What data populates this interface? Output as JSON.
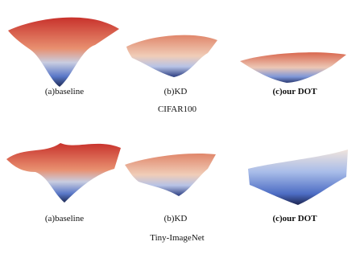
{
  "rows": [
    {
      "label": "CIFAR100",
      "panels": [
        "(a)baseline",
        "(b)KD",
        "(c)our DOT"
      ]
    },
    {
      "label": "Tiny-ImageNet",
      "panels": [
        "(a)baseline",
        "(b)KD",
        "(c)our DOT"
      ]
    }
  ]
}
